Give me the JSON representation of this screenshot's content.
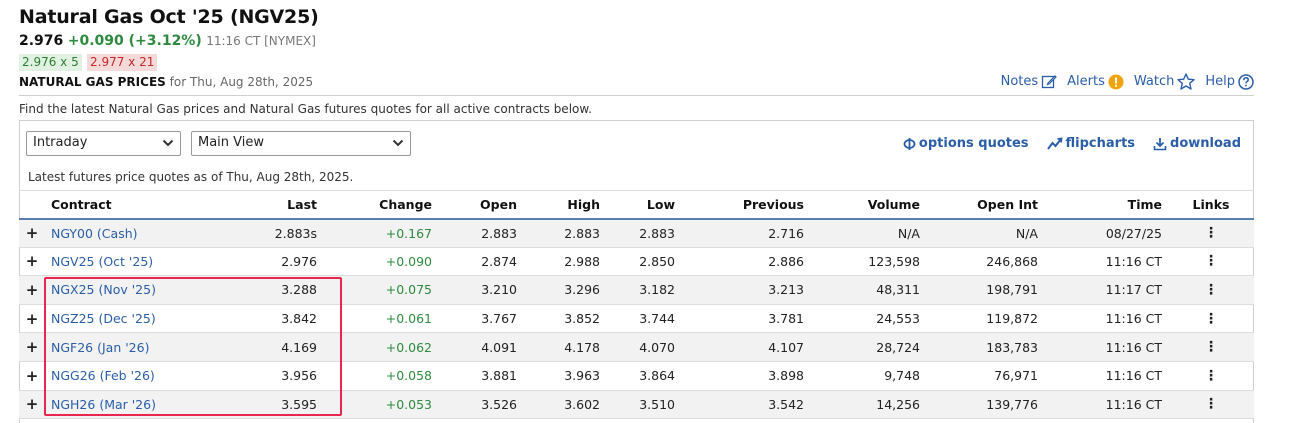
{
  "header": {
    "title": "Natural Gas Oct '25 (NGV25)",
    "last": "2.976",
    "change": "+0.090 (+3.12%)",
    "time": "11:16 CT [NYMEX]",
    "bid": "2.976 x 5",
    "ask": "2.977 x 21",
    "section_label": "NATURAL GAS PRICES",
    "section_date": "for Thu, Aug 28th, 2025"
  },
  "toplinks": {
    "notes": "Notes",
    "alerts": "Alerts",
    "watch": "Watch",
    "help": "Help"
  },
  "description": "Find the latest Natural Gas prices and Natural Gas futures quotes for all active contracts below.",
  "controls": {
    "period_select": "Intraday",
    "view_select": "Main View",
    "options_quotes": "options quotes",
    "flipcharts": "flipcharts",
    "download": "download"
  },
  "asof": "Latest futures price quotes as of Thu, Aug 28th, 2025.",
  "table": {
    "headers": [
      "Contract",
      "Last",
      "Change",
      "Open",
      "High",
      "Low",
      "Previous",
      "Volume",
      "Open Int",
      "Time",
      "Links"
    ],
    "rows": [
      {
        "contract": "NGY00 (Cash)",
        "last": "2.883s",
        "change": "+0.167",
        "open": "2.883",
        "high": "2.883",
        "low": "2.883",
        "previous": "2.716",
        "volume": "N/A",
        "openint": "N/A",
        "time": "08/27/25"
      },
      {
        "contract": "NGV25 (Oct '25)",
        "last": "2.976",
        "change": "+0.090",
        "open": "2.874",
        "high": "2.988",
        "low": "2.850",
        "previous": "2.886",
        "volume": "123,598",
        "openint": "246,868",
        "time": "11:16 CT"
      },
      {
        "contract": "NGX25 (Nov '25)",
        "last": "3.288",
        "change": "+0.075",
        "open": "3.210",
        "high": "3.296",
        "low": "3.182",
        "previous": "3.213",
        "volume": "48,311",
        "openint": "198,791",
        "time": "11:17 CT"
      },
      {
        "contract": "NGZ25 (Dec '25)",
        "last": "3.842",
        "change": "+0.061",
        "open": "3.767",
        "high": "3.852",
        "low": "3.744",
        "previous": "3.781",
        "volume": "24,553",
        "openint": "119,872",
        "time": "11:16 CT"
      },
      {
        "contract": "NGF26 (Jan '26)",
        "last": "4.169",
        "change": "+0.062",
        "open": "4.091",
        "high": "4.178",
        "low": "4.070",
        "previous": "4.107",
        "volume": "28,724",
        "openint": "183,783",
        "time": "11:16 CT"
      },
      {
        "contract": "NGG26 (Feb '26)",
        "last": "3.956",
        "change": "+0.058",
        "open": "3.881",
        "high": "3.963",
        "low": "3.864",
        "previous": "3.898",
        "volume": "9,748",
        "openint": "76,971",
        "time": "11:16 CT"
      },
      {
        "contract": "NGH26 (Mar '26)",
        "last": "3.595",
        "change": "+0.053",
        "open": "3.526",
        "high": "3.602",
        "low": "3.510",
        "previous": "3.542",
        "volume": "14,256",
        "openint": "139,776",
        "time": "11:16 CT"
      }
    ]
  },
  "colors": {
    "link": "#2a5ea8",
    "positive": "#2e8b3e",
    "highlight": "#e8264e",
    "alert_icon": "#f0a30a"
  }
}
